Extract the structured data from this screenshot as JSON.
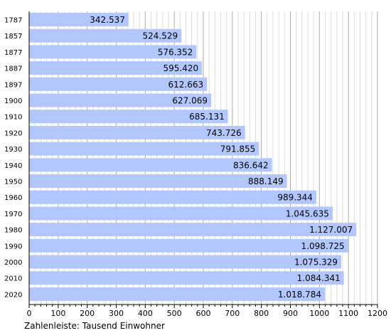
{
  "chart_data": {
    "type": "bar",
    "orientation": "horizontal",
    "categories": [
      "1787",
      "1857",
      "1877",
      "1887",
      "1897",
      "1900",
      "1910",
      "1920",
      "1930",
      "1940",
      "1950",
      "1960",
      "1970",
      "1980",
      "1990",
      "2000",
      "2010",
      "2020"
    ],
    "values": [
      342.537,
      524.529,
      576.352,
      595.42,
      612.663,
      627.069,
      685.131,
      743.726,
      791.855,
      836.642,
      888.149,
      989.344,
      1045.635,
      1127.007,
      1098.725,
      1075.329,
      1084.341,
      1018.784
    ],
    "value_labels": [
      "342.537",
      "524.529",
      "576.352",
      "595.420",
      "612.663",
      "627.069",
      "685.131",
      "743.726",
      "791.855",
      "836.642",
      "888.149",
      "989.344",
      "1.045.635",
      "1.127.007",
      "1.098.725",
      "1.075.329",
      "1.084.341",
      "1.018.784"
    ],
    "x_ticks": [
      "0",
      "100",
      "200",
      "300",
      "400",
      "500",
      "600",
      "700",
      "800",
      "900",
      "1000",
      "1100",
      "1200"
    ],
    "xlim": [
      0,
      1200
    ],
    "grid": true,
    "bar_color": "#b3c7ff",
    "note": "Zahlenleiste: Tausend Einwohner"
  }
}
